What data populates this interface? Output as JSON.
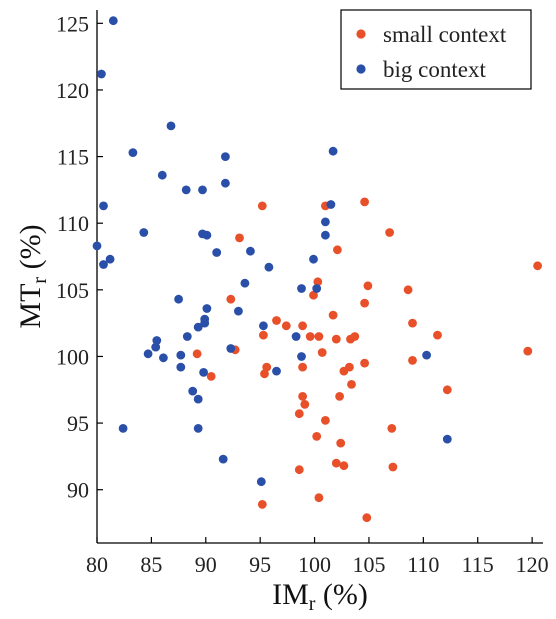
{
  "chart_data": {
    "type": "scatter",
    "title": "",
    "xlabel": "IM",
    "xlabel_sub": "r",
    "xlabel_unit": " (%)",
    "ylabel": "MT",
    "ylabel_sub": "r",
    "ylabel_unit": " (%)",
    "xlim": [
      80,
      121
    ],
    "ylim": [
      86,
      126
    ],
    "xticks": [
      80,
      85,
      90,
      95,
      100,
      105,
      110,
      115,
      120
    ],
    "yticks": [
      90,
      95,
      100,
      105,
      110,
      115,
      120,
      125
    ],
    "grid": false,
    "legend": "top-right",
    "series": [
      {
        "name": "small context",
        "color": "#e8502a",
        "points": [
          [
            95.2,
            111.3
          ],
          [
            101.0,
            111.3
          ],
          [
            104.6,
            111.6
          ],
          [
            106.9,
            109.3
          ],
          [
            93.1,
            108.9
          ],
          [
            102.1,
            108.0
          ],
          [
            120.5,
            106.8
          ],
          [
            100.3,
            105.6
          ],
          [
            104.9,
            105.3
          ],
          [
            108.6,
            105.0
          ],
          [
            99.9,
            104.6
          ],
          [
            92.3,
            104.3
          ],
          [
            104.6,
            104.0
          ],
          [
            101.7,
            103.1
          ],
          [
            96.5,
            102.7
          ],
          [
            97.4,
            102.3
          ],
          [
            98.9,
            102.3
          ],
          [
            109.0,
            102.5
          ],
          [
            95.3,
            101.6
          ],
          [
            99.6,
            101.5
          ],
          [
            100.4,
            101.5
          ],
          [
            102.0,
            101.3
          ],
          [
            103.3,
            101.3
          ],
          [
            103.7,
            101.5
          ],
          [
            111.3,
            101.6
          ],
          [
            92.7,
            100.5
          ],
          [
            89.2,
            100.2
          ],
          [
            100.7,
            100.3
          ],
          [
            119.6,
            100.4
          ],
          [
            109.0,
            99.7
          ],
          [
            95.6,
            99.2
          ],
          [
            98.9,
            99.2
          ],
          [
            104.6,
            99.5
          ],
          [
            103.2,
            99.2
          ],
          [
            102.7,
            98.9
          ],
          [
            95.4,
            98.7
          ],
          [
            90.5,
            98.5
          ],
          [
            103.4,
            97.9
          ],
          [
            112.2,
            97.5
          ],
          [
            98.9,
            97.0
          ],
          [
            102.3,
            97.0
          ],
          [
            99.1,
            96.4
          ],
          [
            98.6,
            95.7
          ],
          [
            101.0,
            95.2
          ],
          [
            107.1,
            94.6
          ],
          [
            100.2,
            94.0
          ],
          [
            102.4,
            93.5
          ],
          [
            102.0,
            92.0
          ],
          [
            102.7,
            91.8
          ],
          [
            107.2,
            91.7
          ],
          [
            98.6,
            91.5
          ],
          [
            100.4,
            89.4
          ],
          [
            95.2,
            88.9
          ],
          [
            104.8,
            87.9
          ]
        ]
      },
      {
        "name": "big context",
        "color": "#2a4fa8",
        "points": [
          [
            81.5,
            125.2
          ],
          [
            80.4,
            121.2
          ],
          [
            86.8,
            117.3
          ],
          [
            83.3,
            115.3
          ],
          [
            91.8,
            115.0
          ],
          [
            101.7,
            115.4
          ],
          [
            86.0,
            113.6
          ],
          [
            91.8,
            113.0
          ],
          [
            88.2,
            112.5
          ],
          [
            89.7,
            112.5
          ],
          [
            80.6,
            111.3
          ],
          [
            101.5,
            111.4
          ],
          [
            101.0,
            110.1
          ],
          [
            84.3,
            109.3
          ],
          [
            89.7,
            109.2
          ],
          [
            90.1,
            109.1
          ],
          [
            101.0,
            109.1
          ],
          [
            80.0,
            108.3
          ],
          [
            94.1,
            107.9
          ],
          [
            91.0,
            107.8
          ],
          [
            99.9,
            107.3
          ],
          [
            81.2,
            107.3
          ],
          [
            80.6,
            106.9
          ],
          [
            95.8,
            106.7
          ],
          [
            93.6,
            105.5
          ],
          [
            100.2,
            105.1
          ],
          [
            98.8,
            105.1
          ],
          [
            87.5,
            104.3
          ],
          [
            95.3,
            102.3
          ],
          [
            90.1,
            103.6
          ],
          [
            93.0,
            103.4
          ],
          [
            89.9,
            102.8
          ],
          [
            89.9,
            102.5
          ],
          [
            89.3,
            102.2
          ],
          [
            98.3,
            101.5
          ],
          [
            88.3,
            101.5
          ],
          [
            85.5,
            101.2
          ],
          [
            85.4,
            100.7
          ],
          [
            92.3,
            100.6
          ],
          [
            84.7,
            100.2
          ],
          [
            87.7,
            100.1
          ],
          [
            86.1,
            99.9
          ],
          [
            98.8,
            100.0
          ],
          [
            110.3,
            100.1
          ],
          [
            87.7,
            99.2
          ],
          [
            96.5,
            98.9
          ],
          [
            89.8,
            98.8
          ],
          [
            88.8,
            97.4
          ],
          [
            89.3,
            96.8
          ],
          [
            89.3,
            94.6
          ],
          [
            82.4,
            94.6
          ],
          [
            112.2,
            93.8
          ],
          [
            91.6,
            92.3
          ],
          [
            95.1,
            90.6
          ]
        ]
      }
    ]
  }
}
